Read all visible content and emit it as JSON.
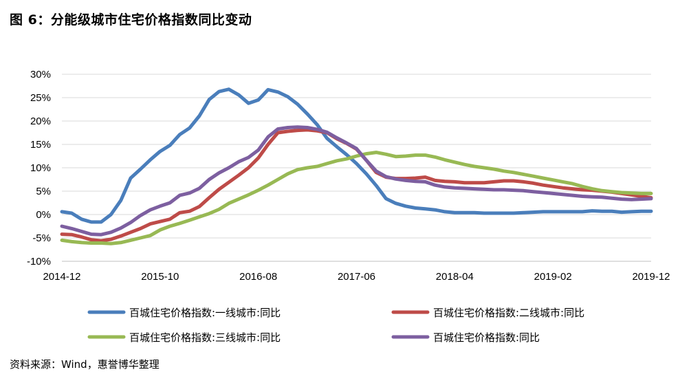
{
  "title": "图 6：分能级城市住宅价格指数同比变动",
  "source": "资料来源：Wind，惠誉博华整理",
  "colors": {
    "tier1": "#4A7EBB",
    "tier2": "#BE4B48",
    "tier3": "#98B954",
    "overall": "#7D5FA0",
    "gridline": "#D9D9D9",
    "axis": "#BFBFBF"
  },
  "chart_data": {
    "type": "line",
    "title": "",
    "xlabel": "",
    "ylabel": "",
    "ylim": [
      -10,
      30
    ],
    "y_ticks": [
      "-10%",
      "-5%",
      "0%",
      "5%",
      "10%",
      "15%",
      "20%",
      "25%",
      "30%"
    ],
    "y_tick_values": [
      -10,
      -5,
      0,
      5,
      10,
      15,
      20,
      25,
      30
    ],
    "x_tick_labels": [
      "2014-12",
      "2015-10",
      "2016-08",
      "2017-06",
      "2018-04",
      "2019-02",
      "2019-12"
    ],
    "x": [
      "2014-12",
      "2015-01",
      "2015-02",
      "2015-03",
      "2015-04",
      "2015-05",
      "2015-06",
      "2015-07",
      "2015-08",
      "2015-09",
      "2015-10",
      "2015-11",
      "2015-12",
      "2016-01",
      "2016-02",
      "2016-03",
      "2016-04",
      "2016-05",
      "2016-06",
      "2016-07",
      "2016-08",
      "2016-09",
      "2016-10",
      "2016-11",
      "2016-12",
      "2017-01",
      "2017-02",
      "2017-03",
      "2017-04",
      "2017-05",
      "2017-06",
      "2017-07",
      "2017-08",
      "2017-09",
      "2017-10",
      "2017-11",
      "2017-12",
      "2018-01",
      "2018-02",
      "2018-03",
      "2018-04",
      "2018-05",
      "2018-06",
      "2018-07",
      "2018-08",
      "2018-09",
      "2018-10",
      "2018-11",
      "2018-12",
      "2019-01",
      "2019-02",
      "2019-03",
      "2019-04",
      "2019-05",
      "2019-06",
      "2019-07",
      "2019-08",
      "2019-09",
      "2019-10",
      "2019-11",
      "2019-12"
    ],
    "grid": true,
    "legend_position": "bottom",
    "series": [
      {
        "name": "百城住宅价格指数:一线城市:同比",
        "color_key": "tier1",
        "values": [
          0.6,
          0.3,
          -1.0,
          -1.6,
          -1.6,
          0.0,
          3.0,
          7.8,
          9.7,
          11.7,
          13.5,
          14.8,
          17.1,
          18.5,
          21.1,
          24.6,
          26.3,
          26.8,
          25.6,
          23.8,
          24.5,
          26.7,
          26.2,
          25.2,
          23.6,
          21.5,
          19.2,
          16.3,
          14.5,
          12.8,
          10.9,
          8.7,
          6.2,
          3.4,
          2.4,
          1.8,
          1.4,
          1.2,
          1.0,
          0.6,
          0.4,
          0.4,
          0.4,
          0.3,
          0.3,
          0.3,
          0.3,
          0.4,
          0.5,
          0.6,
          0.6,
          0.6,
          0.6,
          0.6,
          0.8,
          0.7,
          0.7,
          0.5,
          0.6,
          0.7,
          0.7
        ]
      },
      {
        "name": "百城住宅价格指数:二线城市:同比",
        "color_key": "tier2",
        "values": [
          -4.2,
          -4.3,
          -4.8,
          -5.4,
          -5.6,
          -5.3,
          -4.6,
          -3.8,
          -3.0,
          -2.0,
          -1.5,
          -1.0,
          0.4,
          0.7,
          1.7,
          3.6,
          5.4,
          6.9,
          8.4,
          10.0,
          12.1,
          15.0,
          17.5,
          17.8,
          18.0,
          18.1,
          17.9,
          17.5,
          16.2,
          15.2,
          14.0,
          11.6,
          9.0,
          8.0,
          7.7,
          7.7,
          7.8,
          8.0,
          7.3,
          7.1,
          7.0,
          6.8,
          6.8,
          6.8,
          7.0,
          7.2,
          7.2,
          7.0,
          6.7,
          6.3,
          6.0,
          5.7,
          5.5,
          5.3,
          5.2,
          5.0,
          4.8,
          4.5,
          4.2,
          3.9,
          3.6
        ]
      },
      {
        "name": "百城住宅价格指数:三线城市:同比",
        "color_key": "tier3",
        "values": [
          -5.5,
          -5.8,
          -6.0,
          -6.1,
          -6.1,
          -6.2,
          -6.0,
          -5.5,
          -5.0,
          -4.5,
          -3.3,
          -2.5,
          -1.9,
          -1.2,
          -0.5,
          0.2,
          1.1,
          2.4,
          3.3,
          4.2,
          5.2,
          6.3,
          7.5,
          8.7,
          9.6,
          10.0,
          10.3,
          10.9,
          11.5,
          11.9,
          12.5,
          13.0,
          13.3,
          12.9,
          12.4,
          12.5,
          12.7,
          12.7,
          12.3,
          11.7,
          11.2,
          10.7,
          10.3,
          10.0,
          9.7,
          9.3,
          9.0,
          8.6,
          8.2,
          7.8,
          7.4,
          7.0,
          6.6,
          6.0,
          5.5,
          5.1,
          4.9,
          4.7,
          4.6,
          4.5,
          4.5
        ]
      },
      {
        "name": "百城住宅价格指数:同比",
        "color_key": "overall",
        "values": [
          -2.5,
          -3.0,
          -3.6,
          -4.2,
          -4.3,
          -3.8,
          -2.9,
          -1.7,
          -0.2,
          1.0,
          1.8,
          2.5,
          4.1,
          4.6,
          5.6,
          7.5,
          8.9,
          10.0,
          11.3,
          12.2,
          13.8,
          16.6,
          18.3,
          18.6,
          18.7,
          18.6,
          18.2,
          17.6,
          16.4,
          15.3,
          14.1,
          11.6,
          9.3,
          8.1,
          7.6,
          7.3,
          7.1,
          7.0,
          6.3,
          5.9,
          5.7,
          5.6,
          5.5,
          5.4,
          5.3,
          5.3,
          5.2,
          5.1,
          4.9,
          4.7,
          4.5,
          4.3,
          4.1,
          3.9,
          3.8,
          3.7,
          3.5,
          3.3,
          3.2,
          3.3,
          3.4
        ]
      }
    ]
  }
}
